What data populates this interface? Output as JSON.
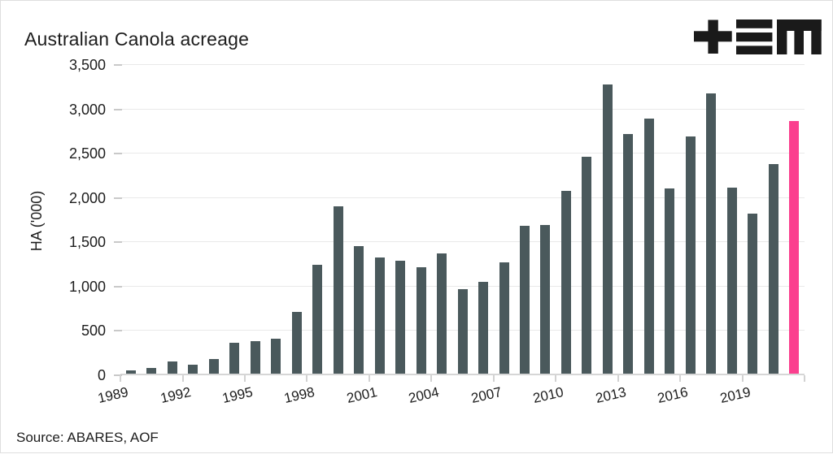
{
  "header": {
    "title": "Australian Canola acreage",
    "logo": "tem-logo"
  },
  "footer": {
    "source": "Source: ABARES, AOF"
  },
  "colors": {
    "bar": "#4a595c",
    "highlight": "#fb3f8e",
    "grid": "#e9e9e9",
    "axis": "#d6d6d6",
    "tick": "#c9c9c9",
    "text": "#1d1d1d",
    "logo": "#1a1a1a"
  },
  "chart_data": {
    "type": "bar",
    "title": "Australian Canola acreage",
    "xlabel": "",
    "ylabel": "HA ('000)",
    "ylim": [
      0,
      3500
    ],
    "ytick_step": 500,
    "ytick_labels": [
      "0",
      "500",
      "1,000",
      "1,500",
      "2,000",
      "2,500",
      "3,000",
      "3,500"
    ],
    "xtick_labels": [
      "1989",
      "1992",
      "1995",
      "1998",
      "2001",
      "2004",
      "2007",
      "2010",
      "2013",
      "2016",
      "2019"
    ],
    "grid": "horizontal",
    "legend": "none",
    "categories": [
      1989,
      1990,
      1991,
      1992,
      1993,
      1994,
      1995,
      1996,
      1997,
      1998,
      1999,
      2000,
      2001,
      2002,
      2003,
      2004,
      2005,
      2006,
      2007,
      2008,
      2009,
      2010,
      2011,
      2012,
      2013,
      2014,
      2015,
      2016,
      2017,
      2018,
      2019,
      2020,
      2021
    ],
    "values": [
      60,
      85,
      160,
      120,
      185,
      365,
      385,
      415,
      715,
      1250,
      1910,
      1460,
      1330,
      1295,
      1215,
      1375,
      970,
      1050,
      1275,
      1690,
      1700,
      2080,
      2465,
      3280,
      2725,
      2900,
      2105,
      2690,
      3180,
      2120,
      1820,
      2385,
      2870
    ],
    "highlight_index": 32
  }
}
